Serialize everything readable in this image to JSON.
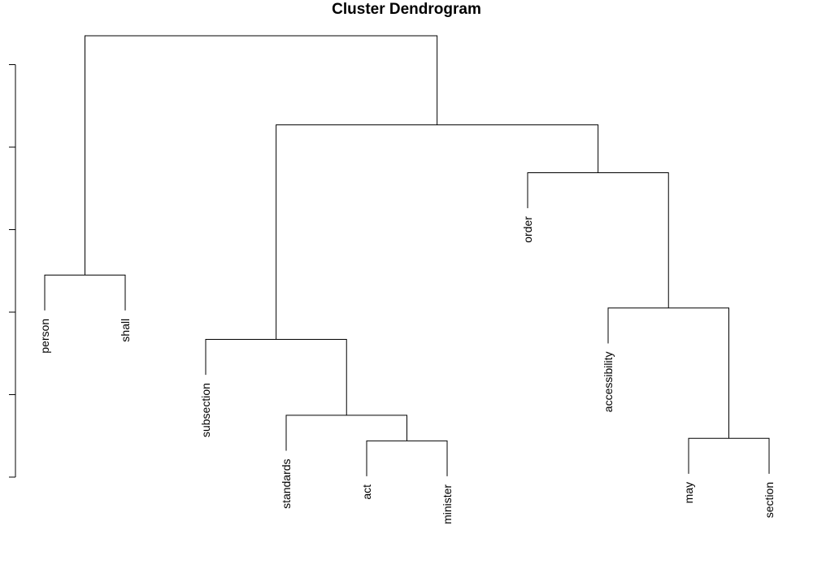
{
  "chart_data": {
    "type": "dendrogram",
    "title": "Cluster Dendrogram",
    "xlabel": "",
    "ylabel": "",
    "leaves": [
      "person",
      "shall",
      "subsection",
      "standards",
      "act",
      "minister",
      "order",
      "accessibility",
      "may",
      "section"
    ],
    "merges": [
      {
        "id": "m1",
        "left": "act",
        "right": "minister",
        "height": 0.44
      },
      {
        "id": "m2",
        "left": "may",
        "right": "section",
        "height": 0.47
      },
      {
        "id": "m3",
        "left": "standards",
        "right": "m1",
        "height": 0.75
      },
      {
        "id": "m4",
        "left": "person",
        "right": "shall",
        "height": 2.45
      },
      {
        "id": "m5",
        "left": "subsection",
        "right": "m3",
        "height": 1.67
      },
      {
        "id": "m6",
        "left": "accessibility",
        "right": "m2",
        "height": 2.05
      },
      {
        "id": "m7",
        "left": "order",
        "right": "m6",
        "height": 3.69
      },
      {
        "id": "m8",
        "left": "m5",
        "right": "m7",
        "height": 4.27
      },
      {
        "id": "m9",
        "left": "m4",
        "right": "m8",
        "height": 5.35
      }
    ],
    "ylim": [
      -0.02,
      5.35
    ],
    "y_ticks": [
      0,
      1,
      2,
      3,
      4,
      5
    ],
    "y_tick_labels_shown": false,
    "grid": false
  }
}
